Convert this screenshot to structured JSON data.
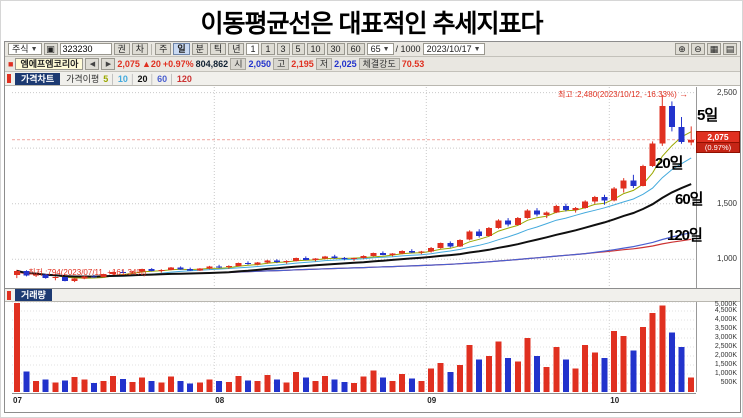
{
  "page_title": "이동평균선은 대표적인 추세지표다",
  "toolbar": {
    "market_type": "주식",
    "code": "323230",
    "small_buttons": [
      "권",
      "차"
    ],
    "period_tabs": [
      "주",
      "일",
      "분",
      "틱",
      "년"
    ],
    "interval_value": "1",
    "minute_buttons": [
      "1",
      "3",
      "5",
      "10",
      "30",
      "60"
    ],
    "bar_count": "65",
    "bar_total": "/ 1000",
    "date": "2023/10/17",
    "icons": {
      "dropdown": "▼",
      "search": "▣",
      "zoom_in": "⊕",
      "zoom_out": "⊖",
      "grid": "▦",
      "print": "▤",
      "prev": "◀",
      "next": "▶",
      "logo": "■"
    }
  },
  "quote": {
    "name": "엠에프엠코리아",
    "price": "2,075",
    "change": "▲20",
    "change_pct": "+0.97%",
    "volume": "804,862",
    "open_label": "시",
    "open": "2,050",
    "high_label": "고",
    "high": "2,195",
    "low_label": "저",
    "low": "2,025",
    "strength_label": "체결강도",
    "strength": "70.53"
  },
  "price_panel": {
    "title": "가격차트",
    "legend_label": "가격이평",
    "legend_items": [
      "5",
      "10",
      "20",
      "60",
      "120"
    ],
    "high_note": "최고 :2,480(2023/10/12, -16.33%)",
    "high_arrow": "→",
    "low_arrow": "←",
    "low_note": "최저 :794(2023/07/11, +161.34%)",
    "ma_label_5": "5일",
    "ma_label_20": "20일",
    "ma_label_60": "60일",
    "ma_label_120": "120일",
    "current_price": "2,075",
    "current_pct": "(0.97%)"
  },
  "volume_panel": {
    "title": "거래량"
  },
  "axes": {
    "price_ticks": [
      {
        "v": 2500,
        "label": "2,500"
      },
      {
        "v": 2000,
        "label": "2,000"
      },
      {
        "v": 1500,
        "label": "1,500"
      },
      {
        "v": 1000,
        "label": "1,000"
      }
    ],
    "volume_ticks": [
      {
        "v": 5000,
        "label": "5,000K"
      },
      {
        "v": 4500,
        "label": "4,500K"
      },
      {
        "v": 4000,
        "label": "4,000K"
      },
      {
        "v": 3500,
        "label": "3,500K"
      },
      {
        "v": 3000,
        "label": "3,000K"
      },
      {
        "v": 2500,
        "label": "2,500K"
      },
      {
        "v": 2000,
        "label": "2,000K"
      },
      {
        "v": 1500,
        "label": "1,500K"
      },
      {
        "v": 1000,
        "label": "1,000K"
      },
      {
        "v": 500,
        "label": "500K"
      }
    ]
  },
  "chart_data": {
    "type": "candlestick_volume",
    "title": "엠에프엠코리아 일봉 (2023/07 ~ 2023/10/17)",
    "price_range": [
      750,
      2550
    ],
    "volume_max": 5000,
    "volume_unit": "K",
    "high_point": {
      "price": 2480,
      "date": "2023/10/12",
      "pct_from_current": "-16.33%"
    },
    "low_point": {
      "price": 794,
      "date": "2023/07/11",
      "pct_to_current": "+161.34%"
    },
    "ma_windows": [
      5,
      10,
      20,
      60,
      120
    ],
    "months": [
      {
        "label": "07",
        "index": 0
      },
      {
        "label": "08",
        "index": 21
      },
      {
        "label": "09",
        "index": 43
      },
      {
        "label": "10",
        "index": 62
      }
    ],
    "candles": [
      [
        860,
        905,
        830,
        895,
        4950
      ],
      [
        895,
        900,
        845,
        855,
        1150
      ],
      [
        855,
        870,
        840,
        862,
        620
      ],
      [
        862,
        868,
        825,
        830,
        700
      ],
      [
        830,
        845,
        810,
        840,
        520
      ],
      [
        840,
        842,
        800,
        805,
        650
      ],
      [
        805,
        830,
        794,
        825,
        820
      ],
      [
        825,
        850,
        820,
        845,
        700
      ],
      [
        845,
        860,
        835,
        838,
        500
      ],
      [
        838,
        870,
        836,
        866,
        620
      ],
      [
        866,
        890,
        860,
        885,
        900
      ],
      [
        885,
        905,
        875,
        880,
        720
      ],
      [
        880,
        895,
        870,
        890,
        560
      ],
      [
        890,
        915,
        885,
        910,
        810
      ],
      [
        910,
        920,
        890,
        895,
        600
      ],
      [
        895,
        910,
        880,
        905,
        520
      ],
      [
        905,
        930,
        900,
        925,
        860
      ],
      [
        925,
        935,
        905,
        910,
        610
      ],
      [
        910,
        925,
        895,
        900,
        460
      ],
      [
        900,
        920,
        895,
        915,
        520
      ],
      [
        915,
        940,
        910,
        935,
        700
      ],
      [
        935,
        950,
        920,
        930,
        600
      ],
      [
        930,
        945,
        915,
        940,
        560
      ],
      [
        940,
        970,
        935,
        965,
        900
      ],
      [
        965,
        980,
        950,
        955,
        650
      ],
      [
        955,
        975,
        945,
        970,
        600
      ],
      [
        970,
        995,
        960,
        990,
        950
      ],
      [
        990,
        1000,
        965,
        975,
        700
      ],
      [
        975,
        990,
        960,
        985,
        520
      ],
      [
        985,
        1015,
        980,
        1010,
        1100
      ],
      [
        1010,
        1025,
        990,
        995,
        800
      ],
      [
        995,
        1010,
        980,
        1005,
        620
      ],
      [
        1005,
        1030,
        1000,
        1025,
        900
      ],
      [
        1025,
        1040,
        1005,
        1010,
        700
      ],
      [
        1010,
        1020,
        990,
        1000,
        560
      ],
      [
        1000,
        1015,
        985,
        1010,
        500
      ],
      [
        1010,
        1035,
        1005,
        1030,
        850
      ],
      [
        1030,
        1060,
        1025,
        1055,
        1200
      ],
      [
        1055,
        1070,
        1035,
        1040,
        800
      ],
      [
        1040,
        1055,
        1025,
        1050,
        620
      ],
      [
        1050,
        1080,
        1045,
        1075,
        1000
      ],
      [
        1075,
        1090,
        1055,
        1060,
        760
      ],
      [
        1060,
        1075,
        1045,
        1070,
        620
      ],
      [
        1070,
        1110,
        1060,
        1100,
        1300
      ],
      [
        1100,
        1150,
        1095,
        1145,
        1600
      ],
      [
        1145,
        1160,
        1105,
        1115,
        1100
      ],
      [
        1115,
        1180,
        1110,
        1175,
        1500
      ],
      [
        1175,
        1260,
        1170,
        1250,
        2600
      ],
      [
        1250,
        1270,
        1195,
        1210,
        1800
      ],
      [
        1210,
        1290,
        1205,
        1280,
        2000
      ],
      [
        1280,
        1360,
        1275,
        1350,
        2800
      ],
      [
        1350,
        1370,
        1295,
        1310,
        1900
      ],
      [
        1310,
        1380,
        1305,
        1370,
        1700
      ],
      [
        1370,
        1450,
        1365,
        1440,
        3000
      ],
      [
        1440,
        1460,
        1385,
        1400,
        2000
      ],
      [
        1400,
        1430,
        1370,
        1420,
        1400
      ],
      [
        1420,
        1490,
        1415,
        1480,
        2500
      ],
      [
        1480,
        1500,
        1430,
        1445,
        1800
      ],
      [
        1445,
        1470,
        1420,
        1460,
        1300
      ],
      [
        1460,
        1530,
        1455,
        1520,
        2600
      ],
      [
        1520,
        1570,
        1500,
        1560,
        2200
      ],
      [
        1560,
        1580,
        1490,
        1530,
        1900
      ],
      [
        1530,
        1650,
        1520,
        1635,
        3400
      ],
      [
        1635,
        1730,
        1600,
        1710,
        3100
      ],
      [
        1710,
        1760,
        1640,
        1660,
        2300
      ],
      [
        1660,
        1850,
        1655,
        1840,
        3600
      ],
      [
        1840,
        2060,
        1830,
        2040,
        4400
      ],
      [
        2040,
        2480,
        2020,
        2380,
        4800
      ],
      [
        2380,
        2420,
        2150,
        2190,
        3300
      ],
      [
        2190,
        2280,
        2040,
        2055,
        2500
      ],
      [
        2050,
        2195,
        2025,
        2075,
        805
      ]
    ],
    "colors": {
      "up": "#e03020",
      "down": "#2233cc",
      "ma5": "#9aa800",
      "ma10": "#44aadd",
      "ma20": "#101010",
      "ma60": "#4a5fd0",
      "ma120": "#cc3333"
    }
  }
}
